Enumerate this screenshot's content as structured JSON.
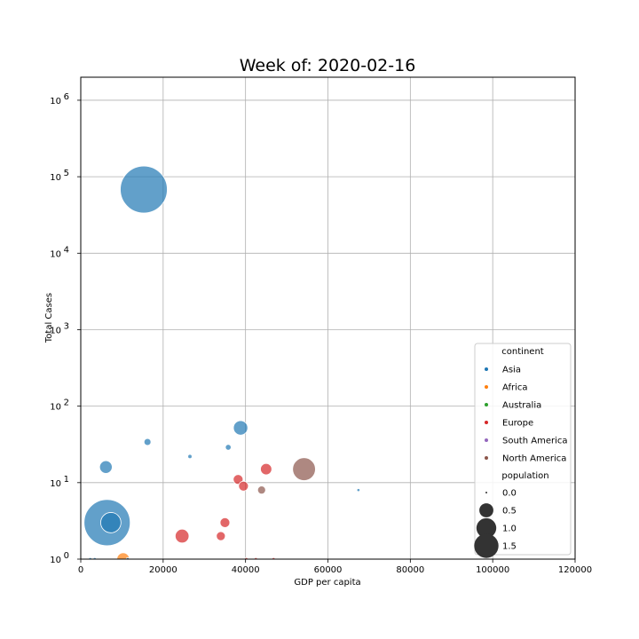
{
  "chart_data": {
    "type": "scatter",
    "title": "Week of: 2020-02-16",
    "xlabel": "GDP per capita",
    "ylabel": "Total Cases",
    "xlim": [
      0,
      120000
    ],
    "ylim": [
      1,
      2000000
    ],
    "yscale": "log",
    "grid": true,
    "x_ticks": [
      0,
      20000,
      40000,
      60000,
      80000,
      100000,
      120000
    ],
    "x_tick_labels": [
      "0",
      "20000",
      "40000",
      "60000",
      "80000",
      "100000",
      "120000"
    ],
    "y_ticks": [
      1,
      10,
      100,
      1000,
      10000,
      100000,
      1000000
    ],
    "y_tick_labels": [
      {
        "base": "10",
        "exp": "0"
      },
      {
        "base": "10",
        "exp": "1"
      },
      {
        "base": "10",
        "exp": "2"
      },
      {
        "base": "10",
        "exp": "3"
      },
      {
        "base": "10",
        "exp": "4"
      },
      {
        "base": "10",
        "exp": "5"
      },
      {
        "base": "10",
        "exp": "6"
      }
    ],
    "legend": {
      "placement": "lower-right",
      "hue_title": "continent",
      "hue_entries": [
        {
          "label": "Asia",
          "color": "#1f77b4"
        },
        {
          "label": "Africa",
          "color": "#ff7f0e"
        },
        {
          "label": "Australia",
          "color": "#2ca02c"
        },
        {
          "label": "Europe",
          "color": "#d62728"
        },
        {
          "label": "South America",
          "color": "#9467bd"
        },
        {
          "label": "North America",
          "color": "#8c564b"
        }
      ],
      "size_title": "population",
      "size_entries": [
        {
          "label": "0.0",
          "value": 0.0
        },
        {
          "label": "0.5",
          "value": 0.5
        },
        {
          "label": "1.0",
          "value": 1.0
        },
        {
          "label": "1.5",
          "value": 1.5
        }
      ]
    },
    "points": [
      {
        "x": 15300,
        "y": 68000,
        "population": 1.4,
        "continent": "Asia"
      },
      {
        "x": 6400,
        "y": 3,
        "population": 1.35,
        "continent": "Asia"
      },
      {
        "x": 7300,
        "y": 3,
        "population": 0.26,
        "continent": "Asia"
      },
      {
        "x": 38800,
        "y": 52,
        "population": 0.13,
        "continent": "Asia"
      },
      {
        "x": 16200,
        "y": 34,
        "population": 0.03,
        "continent": "Asia"
      },
      {
        "x": 6100,
        "y": 16,
        "population": 0.1,
        "continent": "Asia"
      },
      {
        "x": 35800,
        "y": 29,
        "population": 0.02,
        "continent": "Asia"
      },
      {
        "x": 26500,
        "y": 22,
        "population": 0.01,
        "continent": "Asia"
      },
      {
        "x": 67400,
        "y": 8,
        "population": 0.005,
        "continent": "Asia"
      },
      {
        "x": 2300,
        "y": 1,
        "population": 0.005,
        "continent": "Asia"
      },
      {
        "x": 3400,
        "y": 1,
        "population": 0.005,
        "continent": "Asia"
      },
      {
        "x": 11400,
        "y": 1,
        "population": 0.005,
        "continent": "Asia"
      },
      {
        "x": 10300,
        "y": 1,
        "population": 0.1,
        "continent": "Africa"
      },
      {
        "x": 45000,
        "y": 15,
        "population": 0.08,
        "continent": "Europe"
      },
      {
        "x": 38200,
        "y": 11,
        "population": 0.06,
        "continent": "Europe"
      },
      {
        "x": 39500,
        "y": 9,
        "population": 0.06,
        "continent": "Europe"
      },
      {
        "x": 35000,
        "y": 3,
        "population": 0.06,
        "continent": "Europe"
      },
      {
        "x": 24600,
        "y": 2,
        "population": 0.12,
        "continent": "Europe"
      },
      {
        "x": 34000,
        "y": 2,
        "population": 0.05,
        "continent": "Europe"
      },
      {
        "x": 40200,
        "y": 1,
        "population": 0.005,
        "continent": "Europe"
      },
      {
        "x": 42500,
        "y": 1,
        "population": 0.005,
        "continent": "Europe"
      },
      {
        "x": 46800,
        "y": 1,
        "population": 0.005,
        "continent": "Europe"
      },
      {
        "x": 54200,
        "y": 15,
        "population": 0.33,
        "continent": "North America"
      },
      {
        "x": 43900,
        "y": 8,
        "population": 0.04,
        "continent": "North America"
      }
    ]
  }
}
